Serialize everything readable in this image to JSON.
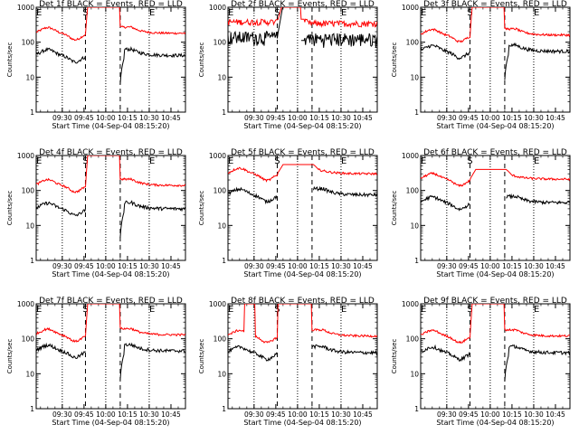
{
  "chart_data": {
    "type": "line",
    "xlabel": "Start Time (04-Sep-04 08:15:20)",
    "ylabel": "Counts/sec",
    "x_ticks": [
      "09:30",
      "09:45",
      "10:00",
      "10:15",
      "10:30",
      "10:45"
    ],
    "x_tick_minutes": [
      75,
      90,
      105,
      120,
      135,
      150
    ],
    "xlim_minutes_from_start": [
      57,
      160
    ],
    "y_ticks": [
      "1",
      "10",
      "100",
      "1000"
    ],
    "y_tick_values": [
      1,
      10,
      100,
      1000
    ],
    "ylim": [
      1,
      1000
    ],
    "y_scale": "log",
    "series_colors": {
      "events": "#000000",
      "lld": "#ff0000"
    },
    "dotted_lines_minutes": [
      75,
      105,
      135
    ],
    "dashed_lines_minutes": [
      91,
      115
    ],
    "markers": [
      {
        "label": "E",
        "minute": 59
      },
      {
        "label": "S",
        "minute": 91
      },
      {
        "label": "E",
        "minute": 137
      }
    ],
    "panels": [
      {
        "title": "Det 1f BLACK = Events, RED = LLD",
        "profile": "a",
        "events_level": 42,
        "lld_level": 180,
        "lld_peak": 1000
      },
      {
        "title": "Det 2f BLACK = Events, RED = LLD",
        "profile": "b",
        "events_level": 140,
        "lld_level": 380,
        "lld_peak": 1000
      },
      {
        "title": "Det 3f BLACK = Events, RED = LLD",
        "profile": "a",
        "events_level": 55,
        "lld_level": 160,
        "lld_peak": 1000
      },
      {
        "title": "Det 4f BLACK = Events, RED = LLD",
        "profile": "a",
        "events_level": 30,
        "lld_level": 140,
        "lld_peak": 1000
      },
      {
        "title": "Det 5f BLACK = Events, RED = LLD",
        "profile": "c",
        "events_level": 75,
        "lld_level": 300,
        "lld_peak": 550
      },
      {
        "title": "Det 6f BLACK = Events, RED = LLD",
        "profile": "d",
        "events_level": 45,
        "lld_level": 210,
        "lld_peak": 400
      },
      {
        "title": "Det 7f BLACK = Events, RED = LLD",
        "profile": "a",
        "events_level": 45,
        "lld_level": 130,
        "lld_peak": 1000
      },
      {
        "title": "Det 8f BLACK = Events, RED = LLD",
        "profile": "e",
        "events_level": 40,
        "lld_level": 120,
        "lld_peak": 1000
      },
      {
        "title": "Det 9f BLACK = Events, RED = LLD",
        "profile": "a",
        "events_level": 40,
        "lld_level": 120,
        "lld_peak": 1000
      }
    ]
  }
}
